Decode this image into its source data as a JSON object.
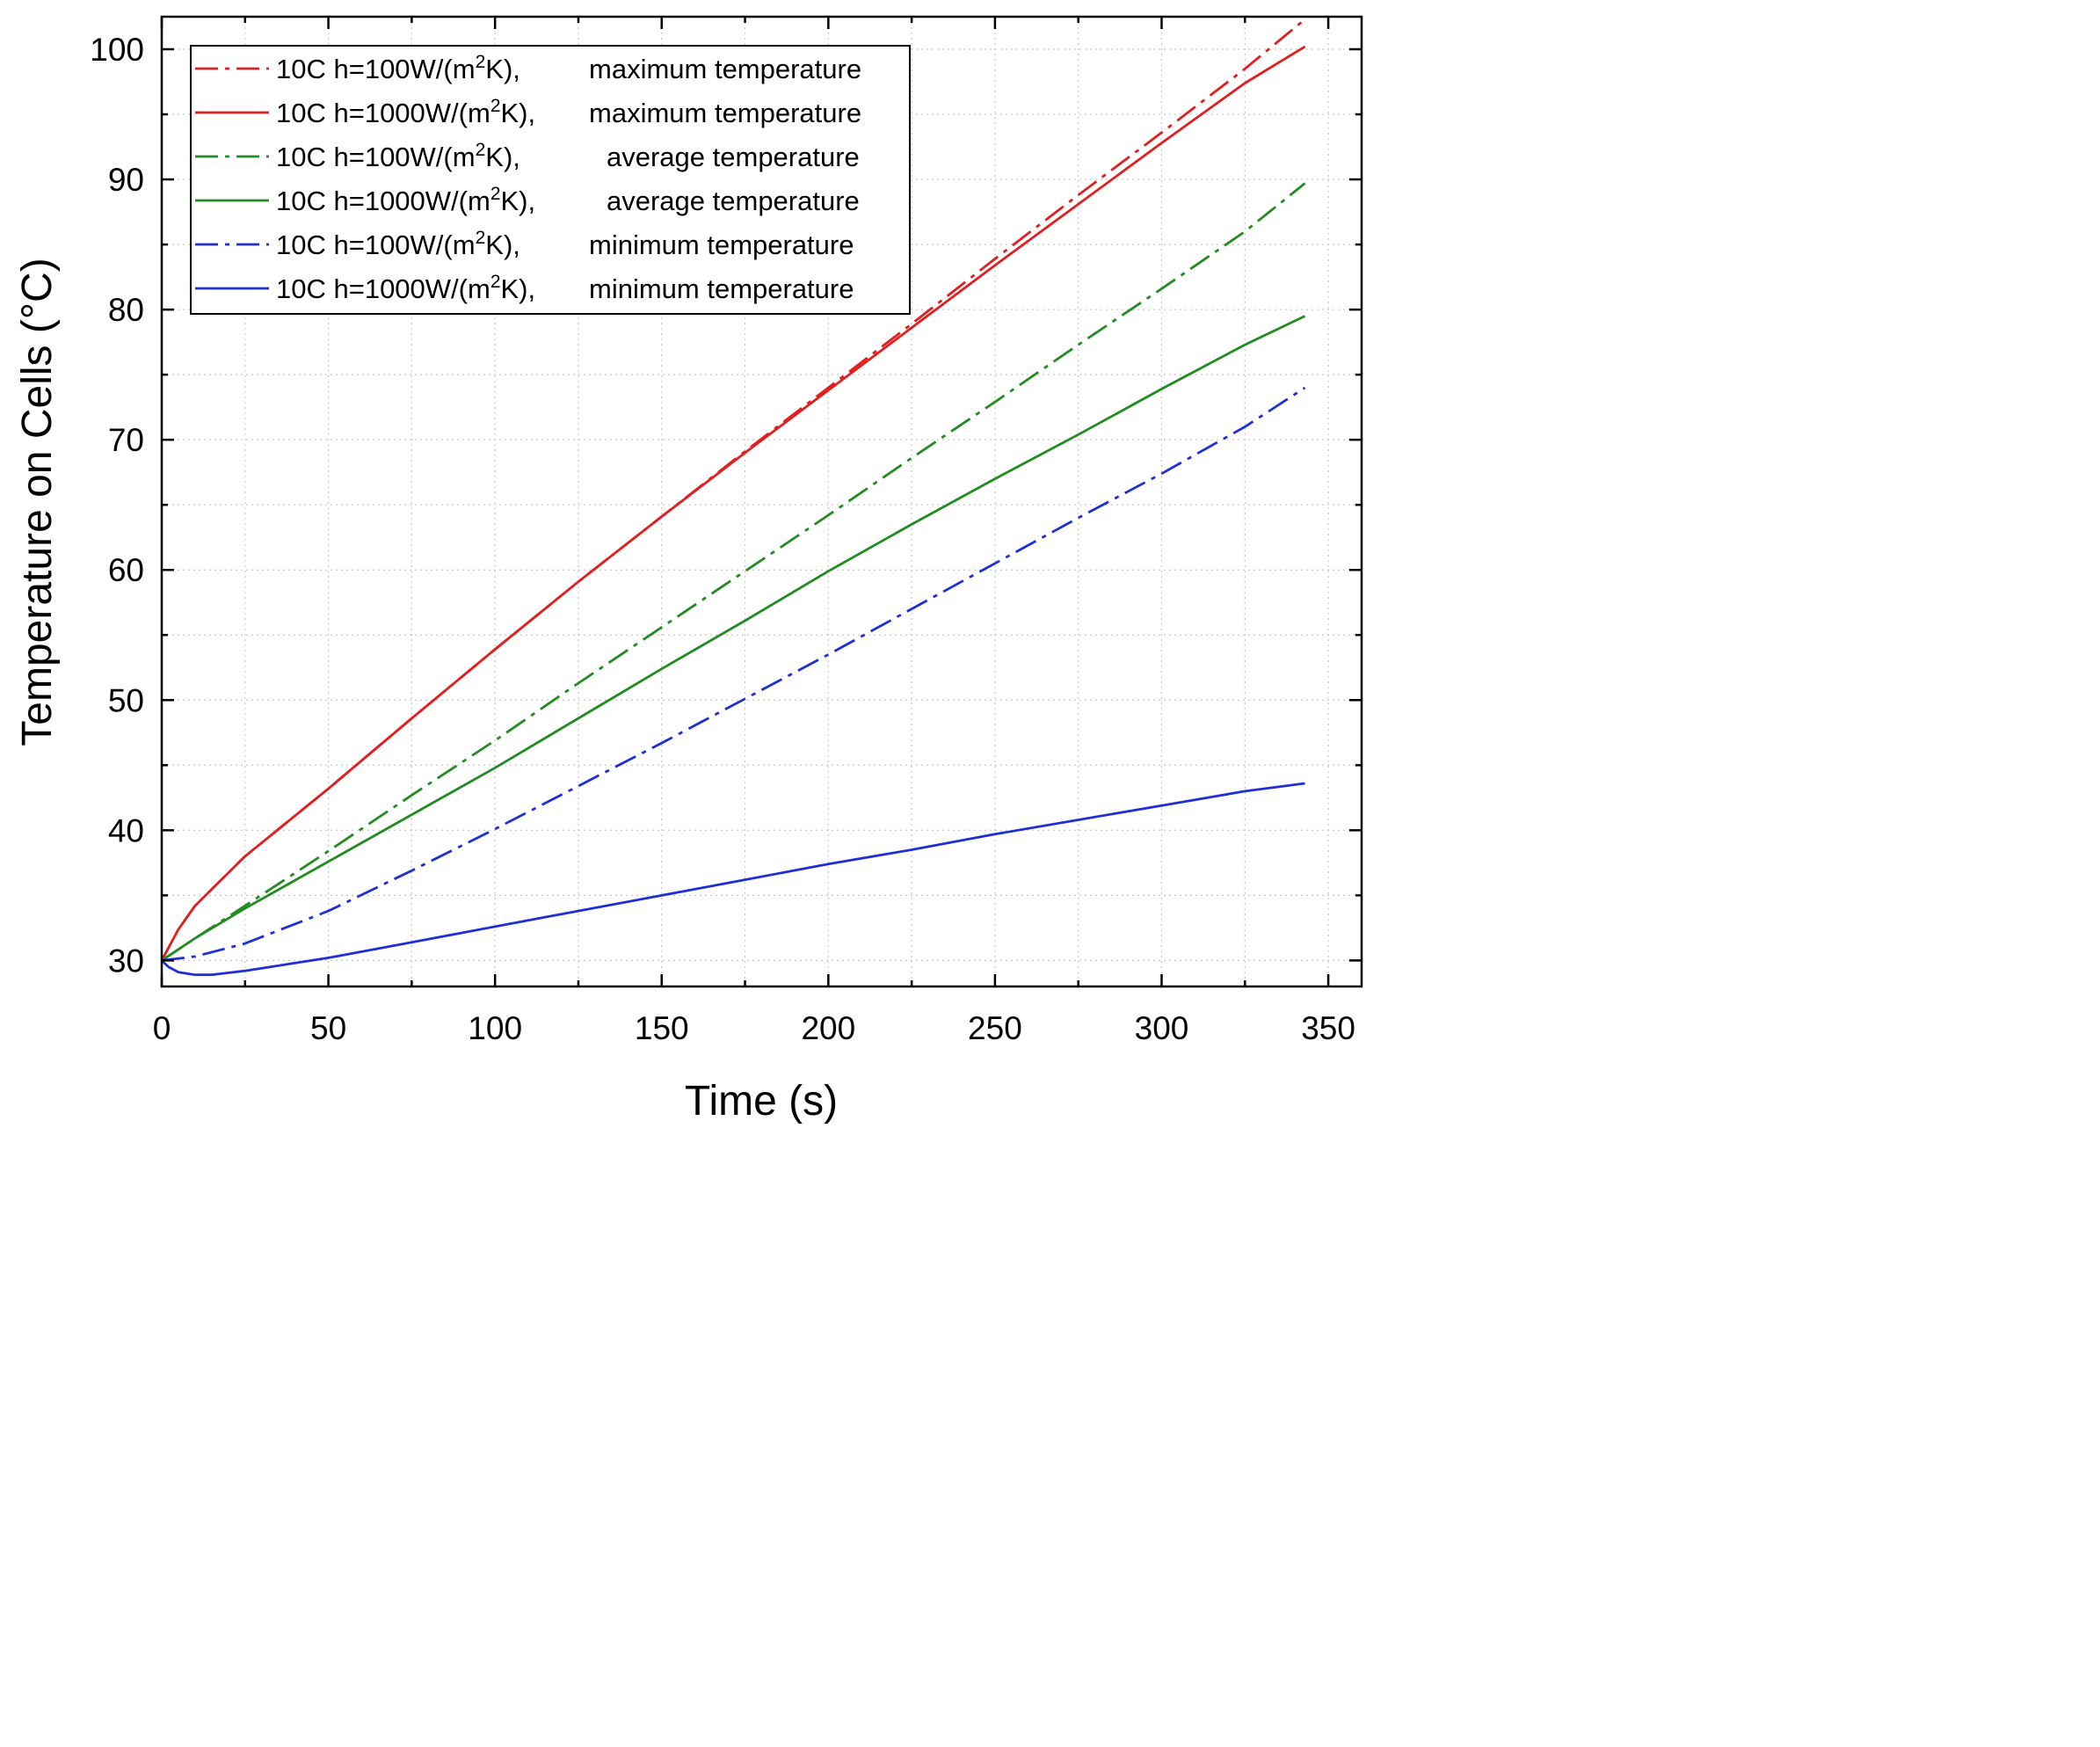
{
  "chart_data": {
    "type": "line",
    "xlabel": "Time (s)",
    "ylabel": "Temperature on Cells (°C)",
    "xlim": [
      0,
      360
    ],
    "ylim": [
      28,
      102.5
    ],
    "xticks": [
      0,
      50,
      100,
      150,
      200,
      250,
      300,
      350
    ],
    "yticks": [
      30,
      40,
      50,
      60,
      70,
      80,
      90,
      100
    ],
    "grid": true,
    "legend_position": "top-left",
    "series": [
      {
        "name": "10C h=100W/(m2K),   maximum temperature",
        "legend_parts": [
          "10C h=100W/(m",
          "2",
          "K),",
          "maximum temperature"
        ],
        "color": "#e02020",
        "style": "dash-dot",
        "x": [
          0,
          5,
          10,
          25,
          50,
          75,
          100,
          125,
          150,
          175,
          200,
          225,
          250,
          275,
          300,
          325,
          343
        ],
        "y": [
          30,
          32.4,
          34.2,
          38,
          43.2,
          48.6,
          53.9,
          59.1,
          64.1,
          69.1,
          74,
          78.9,
          83.9,
          88.8,
          93.6,
          98.5,
          102.3
        ]
      },
      {
        "name": "10C h=1000W/(m2K), maximum temperature",
        "legend_parts": [
          "10C h=1000W/(m",
          "2",
          "K),",
          "maximum temperature"
        ],
        "color": "#e02020",
        "style": "solid",
        "x": [
          0,
          5,
          10,
          25,
          50,
          75,
          100,
          125,
          150,
          175,
          200,
          225,
          250,
          275,
          300,
          325,
          343
        ],
        "y": [
          30,
          32.4,
          34.2,
          38,
          43.2,
          48.6,
          53.9,
          59.1,
          64.1,
          69,
          73.8,
          78.6,
          83.4,
          88.1,
          92.8,
          97.4,
          100.2
        ]
      },
      {
        "name": "10C h=100W/(m2K),     average temperature",
        "legend_parts": [
          "10C h=100W/(m",
          "2",
          "K),",
          "average temperature"
        ],
        "color": "#228b22",
        "style": "dash-dot",
        "x": [
          0,
          10,
          25,
          50,
          75,
          100,
          125,
          150,
          175,
          200,
          225,
          250,
          275,
          300,
          325,
          343
        ],
        "y": [
          30,
          31.7,
          34.2,
          38.4,
          42.7,
          46.9,
          51.3,
          55.6,
          59.9,
          64.2,
          68.6,
          72.9,
          77.3,
          81.6,
          86,
          89.7
        ]
      },
      {
        "name": "10C h=1000W/(m2K),   average temperature",
        "legend_parts": [
          "10C h=1000W/(m",
          "2",
          "K),",
          "average temperature"
        ],
        "color": "#228b22",
        "style": "solid",
        "x": [
          0,
          10,
          25,
          50,
          75,
          100,
          125,
          150,
          175,
          200,
          225,
          250,
          275,
          300,
          325,
          343
        ],
        "y": [
          30,
          31.7,
          34,
          37.6,
          41.2,
          44.8,
          48.6,
          52.4,
          56.1,
          59.9,
          63.5,
          67,
          70.4,
          73.9,
          77.3,
          79.5
        ]
      },
      {
        "name": "10C h=100W/(m2K),   minimum temperature",
        "legend_parts": [
          "10C h=100W/(m",
          "2",
          "K),",
          "minimum temperature"
        ],
        "color": "#1f2fd6",
        "style": "dash-dot",
        "x": [
          0,
          10,
          25,
          50,
          75,
          100,
          125,
          150,
          175,
          200,
          225,
          250,
          275,
          300,
          325,
          343
        ],
        "y": [
          30,
          30.3,
          31.3,
          33.8,
          36.9,
          40.1,
          43.4,
          46.7,
          50.1,
          53.5,
          57,
          60.5,
          64,
          67.4,
          71,
          74
        ]
      },
      {
        "name": "10C h=1000W/(m2K), minimum temperature",
        "legend_parts": [
          "10C h=1000W/(m",
          "2",
          "K),",
          "minimum temperature"
        ],
        "color": "#1f2fd6",
        "style": "solid",
        "x": [
          0,
          2,
          5,
          10,
          15,
          25,
          50,
          75,
          100,
          125,
          150,
          175,
          200,
          225,
          250,
          275,
          300,
          325,
          343
        ],
        "y": [
          30,
          29.5,
          29.1,
          28.9,
          28.9,
          29.2,
          30.2,
          31.4,
          32.6,
          33.8,
          35,
          36.2,
          37.4,
          38.5,
          39.7,
          40.8,
          41.9,
          43,
          43.6
        ]
      }
    ]
  }
}
